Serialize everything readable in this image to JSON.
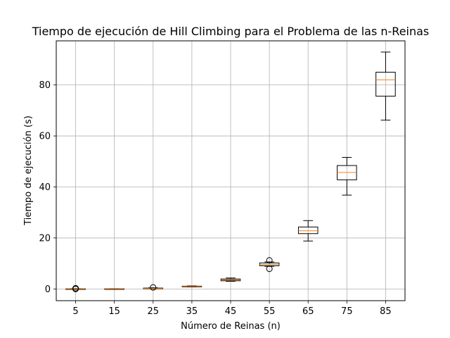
{
  "chart_data": {
    "type": "box",
    "title": "Tiempo de ejecución de Hill Climbing para el Problema de las n-Reinas",
    "xlabel": "Número de Reinas (n)",
    "ylabel": "Tiempo de ejecución (s)",
    "categories": [
      "5",
      "15",
      "25",
      "35",
      "45",
      "55",
      "65",
      "75",
      "85"
    ],
    "ylim": [
      -4.6,
      97.3
    ],
    "yticks": [
      0,
      20,
      40,
      60,
      80
    ],
    "grid": true,
    "box_color": "#000000",
    "median_color": "#ff7f0e",
    "boxes": [
      {
        "category": "5",
        "whisker_low": 0.0,
        "q1": 0.0,
        "median": 0.05,
        "q3": 0.1,
        "whisker_high": 0.15,
        "outliers": [
          0.0,
          0.1,
          0.2,
          0.25
        ]
      },
      {
        "category": "15",
        "whisker_low": 0.0,
        "q1": 0.0,
        "median": 0.05,
        "q3": 0.1,
        "whisker_high": 0.12,
        "outliers": []
      },
      {
        "category": "25",
        "whisker_low": 0.1,
        "q1": 0.1,
        "median": 0.2,
        "q3": 0.35,
        "whisker_high": 0.45,
        "outliers": [
          0.6
        ]
      },
      {
        "category": "35",
        "whisker_low": 0.8,
        "q1": 0.9,
        "median": 1.0,
        "q3": 1.1,
        "whisker_high": 1.2,
        "outliers": []
      },
      {
        "category": "45",
        "whisker_low": 3.0,
        "q1": 3.2,
        "median": 3.5,
        "q3": 3.9,
        "whisker_high": 4.3,
        "outliers": []
      },
      {
        "category": "55",
        "whisker_low": 8.9,
        "q1": 9.1,
        "median": 9.6,
        "q3": 10.2,
        "whisker_high": 10.6,
        "outliers": [
          7.9,
          11.2
        ]
      },
      {
        "category": "65",
        "whisker_low": 18.8,
        "q1": 21.7,
        "median": 22.8,
        "q3": 24.3,
        "whisker_high": 26.8,
        "outliers": []
      },
      {
        "category": "75",
        "whisker_low": 36.8,
        "q1": 42.8,
        "median": 45.7,
        "q3": 48.4,
        "whisker_high": 51.6,
        "outliers": []
      },
      {
        "category": "85",
        "whisker_low": 66.2,
        "q1": 75.6,
        "median": 82.0,
        "q3": 85.0,
        "whisker_high": 92.9,
        "outliers": []
      }
    ]
  }
}
